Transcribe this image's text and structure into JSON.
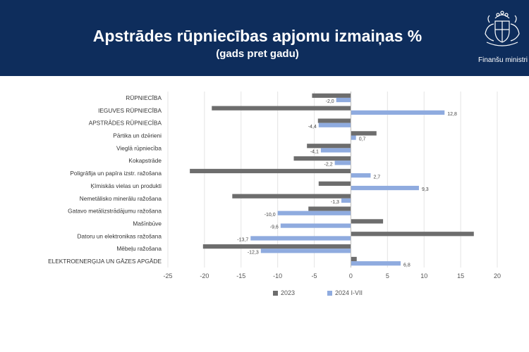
{
  "header": {
    "title": "Apstrādes rūpniecības apjomu izmaiņas %",
    "subtitle": "(gads pret gadu)",
    "ministry": "Finanšu ministri"
  },
  "colors": {
    "background_header": "#0e2d5c",
    "series_2023": "#6d6d6d",
    "series_2024": "#8fabdf"
  },
  "chart_data": {
    "type": "bar",
    "orientation": "horizontal",
    "categories": [
      "RŪPNIECĪBA",
      "IEGUVES RŪPNIECĪBA",
      "APSTRĀDES RŪPNIECĪBA",
      "Pārtika un dzērieni",
      "Vieglā rūpniecība",
      "Kokapstrāde",
      "Poligrāfija un papīra izstr. ražošana",
      "Ķīmiskās vielas un produkti",
      "Nemetālisko minerālu ražošana",
      "Gatavo metālizstrādājumu ražošana",
      "Mašīnbūve",
      "Datoru un elektronikas ražošana",
      "Mēbeļu ražošana",
      "ELEKTROENERĢIJA UN GĀZES APGĀDE"
    ],
    "series": [
      {
        "name": "2023",
        "values": [
          -5.3,
          -19.0,
          -4.5,
          3.5,
          -6.0,
          -7.8,
          -22.0,
          -4.4,
          -16.2,
          -5.8,
          4.4,
          16.8,
          -20.2,
          0.8
        ]
      },
      {
        "name": "2024 I-VII",
        "values": [
          -2.0,
          12.8,
          -4.4,
          0.7,
          -4.1,
          -2.2,
          2.7,
          9.3,
          -1.3,
          -10.0,
          -9.6,
          -13.7,
          -12.3,
          6.8
        ]
      }
    ],
    "data_labels": [
      "-2,0",
      "12,8",
      "-4,4",
      "0,7",
      "-4,1",
      "-2,2",
      "2,7",
      "9,3",
      "-1,3",
      "-10,0",
      "-9,6",
      "-13,7",
      "-12,3",
      "6,8"
    ],
    "xlim": [
      -25,
      20
    ],
    "xticks": [
      -25,
      -20,
      -15,
      -10,
      -5,
      0,
      5,
      10,
      15,
      20
    ],
    "grid": "vertical",
    "legend": "bottom"
  }
}
